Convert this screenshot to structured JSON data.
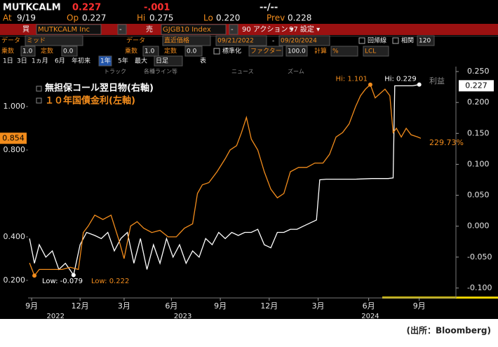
{
  "header": {
    "row1": [
      "MUTKCALM",
      "0.227",
      "-.001",
      "--/--"
    ],
    "row2": [
      "At",
      "9/19",
      "Op",
      "0.227",
      "Hi",
      "0.275",
      "Lo",
      "0.220",
      "Prev",
      "0.228"
    ],
    "row3": [
      "買",
      "MUTKCALM Inc",
      "-",
      "売",
      "GJGB10 Index",
      "-",
      "90 アクション ▾",
      "97 設定 ▾"
    ],
    "row4": [
      "データ",
      "ミッド",
      "データ",
      "直近価格",
      "09/21/2022",
      "-",
      "09/20/2024",
      "回帰線",
      "相関",
      "120"
    ],
    "row5": [
      "乗数",
      "1.0",
      "定数",
      "0.0",
      "乗数",
      "1.0",
      "定数",
      "0.0",
      "標準化",
      "ファクター",
      "100.0",
      "計算",
      "%",
      "LCL"
    ],
    "row6": [
      "1日",
      "3日",
      "1ヵ月",
      "6月",
      "年初来",
      "1年",
      "5年",
      "最大",
      "日足",
      "表"
    ],
    "chart_toolbar": [
      "トラック",
      "各種ライン等",
      "ニュース",
      "ズーム"
    ]
  },
  "chart_data": {
    "type": "line",
    "series": [
      {
        "name": "無担保コール翌日物(右軸)",
        "color": "#ffffff",
        "axis": "y2",
        "hi_label": "Hi: 0.229",
        "low_label": "Low: -0.079",
        "x": [
          0,
          0.3,
          0.6,
          1.0,
          1.4,
          1.8,
          2.2,
          2.7,
          3.1,
          3.5,
          4.0,
          4.4,
          4.8,
          5.2,
          5.6,
          6.0,
          6.4,
          6.8,
          7.2,
          7.6,
          8.0,
          8.4,
          8.8,
          9.2,
          9.6,
          10.0,
          10.4,
          10.8,
          11.2,
          11.6,
          12.0,
          12.4,
          12.8,
          13.2,
          13.6,
          14.0,
          14.4,
          14.8,
          15.2,
          15.6,
          16.0,
          16.4,
          16.8,
          17.2,
          17.6,
          17.8,
          18.2,
          19.0,
          20.0,
          21.0,
          22.0,
          22.3,
          22.4,
          23.0,
          23.5,
          23.9,
          24.0
        ],
        "values": [
          -0.02,
          -0.06,
          -0.03,
          -0.05,
          -0.04,
          -0.07,
          -0.06,
          -0.079,
          -0.03,
          -0.01,
          -0.015,
          -0.02,
          -0.01,
          -0.04,
          -0.02,
          -0.01,
          -0.06,
          -0.02,
          -0.07,
          -0.03,
          -0.06,
          -0.02,
          -0.05,
          -0.03,
          -0.06,
          -0.04,
          -0.05,
          -0.02,
          -0.03,
          -0.01,
          -0.02,
          -0.01,
          -0.015,
          -0.01,
          -0.01,
          -0.005,
          -0.03,
          -0.035,
          -0.01,
          -0.01,
          -0.005,
          -0.005,
          0.0,
          0.005,
          0.01,
          0.075,
          0.076,
          0.076,
          0.076,
          0.077,
          0.077,
          0.078,
          0.227,
          0.227,
          0.227,
          0.229,
          0.227
        ]
      },
      {
        "name": "１０年国債金利(左軸)",
        "color": "#f28c1c",
        "axis": "y",
        "hi_label": "Hi: 1.101",
        "low_label": "Low: 0.222",
        "x": [
          0,
          0.3,
          0.6,
          1.0,
          1.5,
          2.0,
          2.5,
          3.0,
          3.3,
          3.6,
          4.0,
          4.5,
          5.0,
          5.5,
          5.8,
          6.2,
          6.6,
          7.0,
          7.5,
          8.0,
          8.5,
          9.0,
          9.5,
          10.0,
          10.3,
          10.6,
          11.0,
          11.5,
          12.0,
          12.3,
          12.7,
          13.0,
          13.3,
          13.6,
          14.0,
          14.4,
          14.8,
          15.2,
          15.6,
          16.0,
          16.5,
          17.0,
          17.5,
          18.0,
          18.4,
          18.8,
          19.2,
          19.6,
          20.0,
          20.3,
          20.6,
          20.9,
          21.2,
          21.5,
          21.8,
          22.1,
          22.3,
          22.5,
          22.8,
          23.1,
          23.4,
          23.8,
          24.0
        ],
        "values": [
          0.28,
          0.222,
          0.25,
          0.25,
          0.25,
          0.25,
          0.26,
          0.25,
          0.42,
          0.45,
          0.5,
          0.48,
          0.5,
          0.38,
          0.3,
          0.45,
          0.47,
          0.44,
          0.42,
          0.43,
          0.4,
          0.4,
          0.44,
          0.46,
          0.6,
          0.64,
          0.65,
          0.7,
          0.76,
          0.8,
          0.82,
          0.88,
          0.95,
          0.85,
          0.8,
          0.7,
          0.62,
          0.58,
          0.6,
          0.7,
          0.72,
          0.72,
          0.74,
          0.74,
          0.78,
          0.86,
          0.88,
          0.92,
          1.0,
          1.05,
          1.08,
          1.101,
          1.04,
          1.06,
          1.08,
          1.05,
          0.88,
          0.9,
          0.86,
          0.9,
          0.87,
          0.86,
          0.854
        ]
      }
    ],
    "xlim": [
      -0.09,
      26.15
    ],
    "xticks": [
      {
        "value": 0.13,
        "label": "9月"
      },
      {
        "value": 3.1,
        "label": "12月"
      },
      {
        "value": 5.8,
        "label": "3月"
      },
      {
        "value": 8.7,
        "label": "6月"
      },
      {
        "value": 11.7,
        "label": "9月"
      },
      {
        "value": 14.7,
        "label": "12月"
      },
      {
        "value": 17.7,
        "label": "3月"
      },
      {
        "value": 20.8,
        "label": "6月"
      },
      {
        "value": 23.9,
        "label": "9月"
      }
    ],
    "xgroups": [
      {
        "value": 1.6,
        "label": "2022"
      },
      {
        "value": 9.4,
        "label": "2023"
      },
      {
        "value": 20.9,
        "label": "2024"
      }
    ],
    "ylim": [
      0.119,
      1.184
    ],
    "yticks": [
      {
        "value": 1.0,
        "label": "1.000"
      },
      {
        "value": 0.8,
        "label": "0.800"
      },
      {
        "value": 0.4,
        "label": "0.400"
      },
      {
        "value": 0.2,
        "label": "0.200"
      }
    ],
    "y2lim": [
      -0.116,
      0.258
    ],
    "y2ticks": [
      {
        "value": 0.25,
        "label": "0.250"
      },
      {
        "value": 0.2,
        "label": "0.200"
      },
      {
        "value": 0.15,
        "label": "0.150"
      },
      {
        "value": 0.1,
        "label": "0.100"
      },
      {
        "value": 0.05,
        "label": "0.050"
      },
      {
        "value": 0,
        "label": "0.000"
      },
      {
        "value": -0.05,
        "label": "-0.050"
      },
      {
        "value": -0.1,
        "label": "-0.100"
      }
    ],
    "annotations": [
      "利益",
      "229.73%"
    ],
    "source": "(出所：Bloomberg)"
  }
}
